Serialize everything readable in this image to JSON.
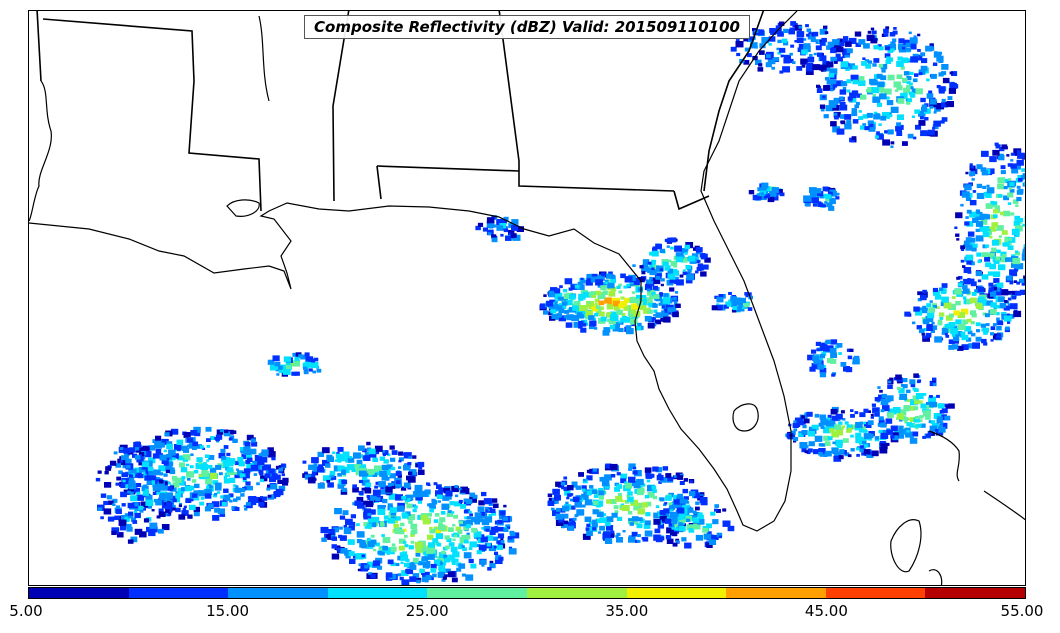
{
  "map": {
    "title": "Composite Reflectivity (dBZ) Valid: 201509110100",
    "variable": "Composite Reflectivity",
    "units": "dBZ",
    "valid_time": "201509110100",
    "region": "Gulf of Mexico and southeastern United States",
    "features": [
      "coastline-lines",
      "state-border-lines",
      "radar-echo-field"
    ]
  },
  "colorbar": {
    "tick_labels": [
      "5.00",
      "15.00",
      "25.00",
      "35.00",
      "45.00",
      "55.00"
    ],
    "colors": [
      "#0000b4",
      "#0030ff",
      "#0090ff",
      "#00e0ff",
      "#60f0a0",
      "#a0f040",
      "#f0f000",
      "#ffa000",
      "#ff4000",
      "#b40000"
    ]
  }
}
